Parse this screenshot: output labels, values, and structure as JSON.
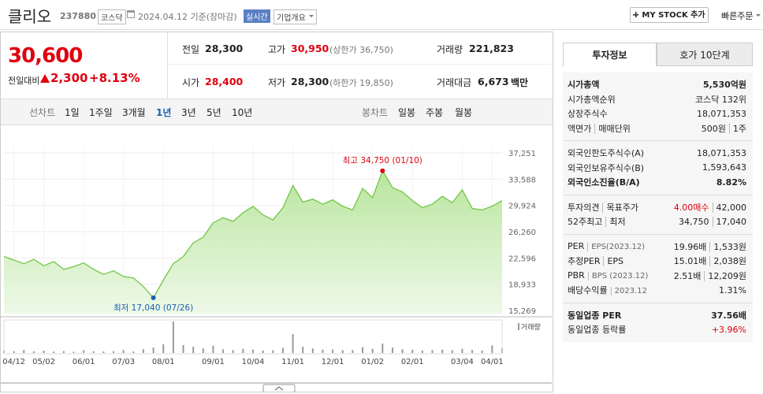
{
  "header": {
    "name": "클리오",
    "code": "237880",
    "market": "코스닥",
    "date": "2024.04.12 기준(장마감)",
    "realtime": "실시간",
    "overview": "기업개요",
    "mystock": "MY STOCK 추가",
    "quick_order": "빠른주문"
  },
  "price": {
    "current": "30,600",
    "change_label": "전일대비",
    "change": "2,300",
    "change_rate": "+8.13%"
  },
  "summary": [
    {
      "label": "전일",
      "value": "28,300"
    },
    {
      "label": "고가",
      "value": "30,950",
      "extra": "(상한가 36,750)"
    },
    {
      "label": "거래량",
      "value": "221,823"
    },
    {
      "label": "시가",
      "value": "28,400"
    },
    {
      "label": "저가",
      "value": "28,300",
      "extra": "(하한가 19,850)"
    },
    {
      "label": "거래대금",
      "value": "6,673",
      "unit": "백만"
    }
  ],
  "tabs": {
    "line_label": "선차트",
    "line": [
      "1일",
      "1주일",
      "3개월",
      "1년",
      "3년",
      "5년",
      "10년"
    ],
    "candle_label": "봉차트",
    "candle": [
      "일봉",
      "주봉",
      "월봉"
    ]
  },
  "chart_data": {
    "type": "area",
    "categories": [
      null,
      "04/12",
      null,
      null,
      "05/02",
      null,
      null,
      null,
      "06/01",
      null,
      null,
      null,
      "07/03",
      null,
      null,
      null,
      "08/01",
      null,
      null,
      null,
      null,
      "09/01",
      null,
      null,
      null,
      "10/04",
      null,
      null,
      null,
      "11/01",
      null,
      null,
      null,
      "12/01",
      null,
      null,
      null,
      "01/02",
      null,
      null,
      null,
      "02/01",
      null,
      null,
      null,
      null,
      "03/04",
      null,
      null,
      "04/01",
      null
    ],
    "price": {
      "color": "#72c646",
      "values": [
        22800,
        22300,
        21800,
        22400,
        21500,
        22100,
        21000,
        21400,
        21900,
        21000,
        20300,
        20800,
        20000,
        19800,
        18600,
        17040,
        19500,
        21800,
        22800,
        24700,
        25500,
        27500,
        28200,
        27700,
        28900,
        29800,
        28600,
        27900,
        29600,
        32700,
        30400,
        30800,
        30100,
        30700,
        29800,
        29300,
        32300,
        31000,
        34750,
        32400,
        31800,
        30600,
        29600,
        30100,
        31200,
        30300,
        32100,
        29500,
        29300,
        29800,
        30600
      ]
    },
    "volume": {
      "name": "거래량",
      "color": "#9a9a9a",
      "values": [
        120000,
        90000,
        150000,
        80000,
        110000,
        70000,
        95000,
        60000,
        130000,
        85000,
        75000,
        90000,
        140000,
        70000,
        180000,
        260000,
        420000,
        1500000,
        380000,
        300000,
        220000,
        350000,
        180000,
        140000,
        200000,
        160000,
        120000,
        130000,
        250000,
        900000,
        300000,
        220000,
        160000,
        170000,
        130000,
        140000,
        280000,
        200000,
        450000,
        260000,
        180000,
        150000,
        120000,
        140000,
        160000,
        130000,
        200000,
        150000,
        120000,
        360000,
        221823
      ]
    },
    "ylim": [
      15269,
      37251
    ],
    "yticks": [
      {
        "value": 15269,
        "label": "15,269"
      },
      {
        "value": 18933,
        "label": "18,933"
      },
      {
        "value": 22596,
        "label": "22,596"
      },
      {
        "value": 26260,
        "label": "26,260"
      },
      {
        "value": 29924,
        "label": "29,924"
      },
      {
        "value": 33588,
        "label": "33,588"
      },
      {
        "value": 37251,
        "label": "37,251"
      }
    ],
    "grid": true,
    "annotations": [
      {
        "text": "최고 34,750 (01/10)",
        "color": "#e0000e"
      },
      {
        "text": "최저 17,040 (07/26)",
        "color": "#1a5fb4"
      }
    ]
  },
  "sidebar": {
    "tabs": [
      "투자정보",
      "호가 10단계"
    ],
    "groups": [
      [
        {
          "label": [
            "시가총액"
          ],
          "value": [
            "5,530억원"
          ]
        },
        {
          "label": [
            "시가총액순위"
          ],
          "value": [
            "코스닥 132위"
          ]
        },
        {
          "label": [
            "상장주식수"
          ],
          "value": [
            "18,071,353"
          ]
        },
        {
          "label": [
            "액면가",
            "매매단위"
          ],
          "value": [
            "500원",
            "1주"
          ]
        }
      ],
      [
        {
          "label": [
            "외국인한도주식수(A)"
          ],
          "value": [
            "18,071,353"
          ]
        },
        {
          "label": [
            "외국인보유주식수(B)"
          ],
          "value": [
            "1,593,643"
          ]
        },
        {
          "label": [
            "외국인소진율(B/A)"
          ],
          "value": [
            "8.82%"
          ]
        }
      ],
      [
        {
          "label": [
            "투자의견",
            "목표주가"
          ],
          "value": [
            "4.00매수",
            "42,000"
          ]
        },
        {
          "label": [
            "52주최고",
            "최저"
          ],
          "value": [
            "34,750",
            "17,040"
          ]
        }
      ],
      [
        {
          "label": [
            "PER",
            "EPS(2023.12)"
          ],
          "value": [
            "19.96배",
            "1,533원"
          ]
        },
        {
          "label": [
            "추정PER",
            "EPS"
          ],
          "value": [
            "15.01배",
            "2,038원"
          ]
        },
        {
          "label": [
            "PBR",
            "BPS (2023.12)"
          ],
          "value": [
            "2.51배",
            "12,209원"
          ]
        },
        {
          "label": [
            "배당수익률",
            "2023.12"
          ],
          "value": [
            "1.31%"
          ]
        }
      ],
      [
        {
          "label": [
            "동일업종 PER"
          ],
          "value": [
            "37.56배"
          ]
        },
        {
          "label": [
            "동일업종 등락률"
          ],
          "value": [
            "+3.96%"
          ]
        }
      ]
    ]
  }
}
